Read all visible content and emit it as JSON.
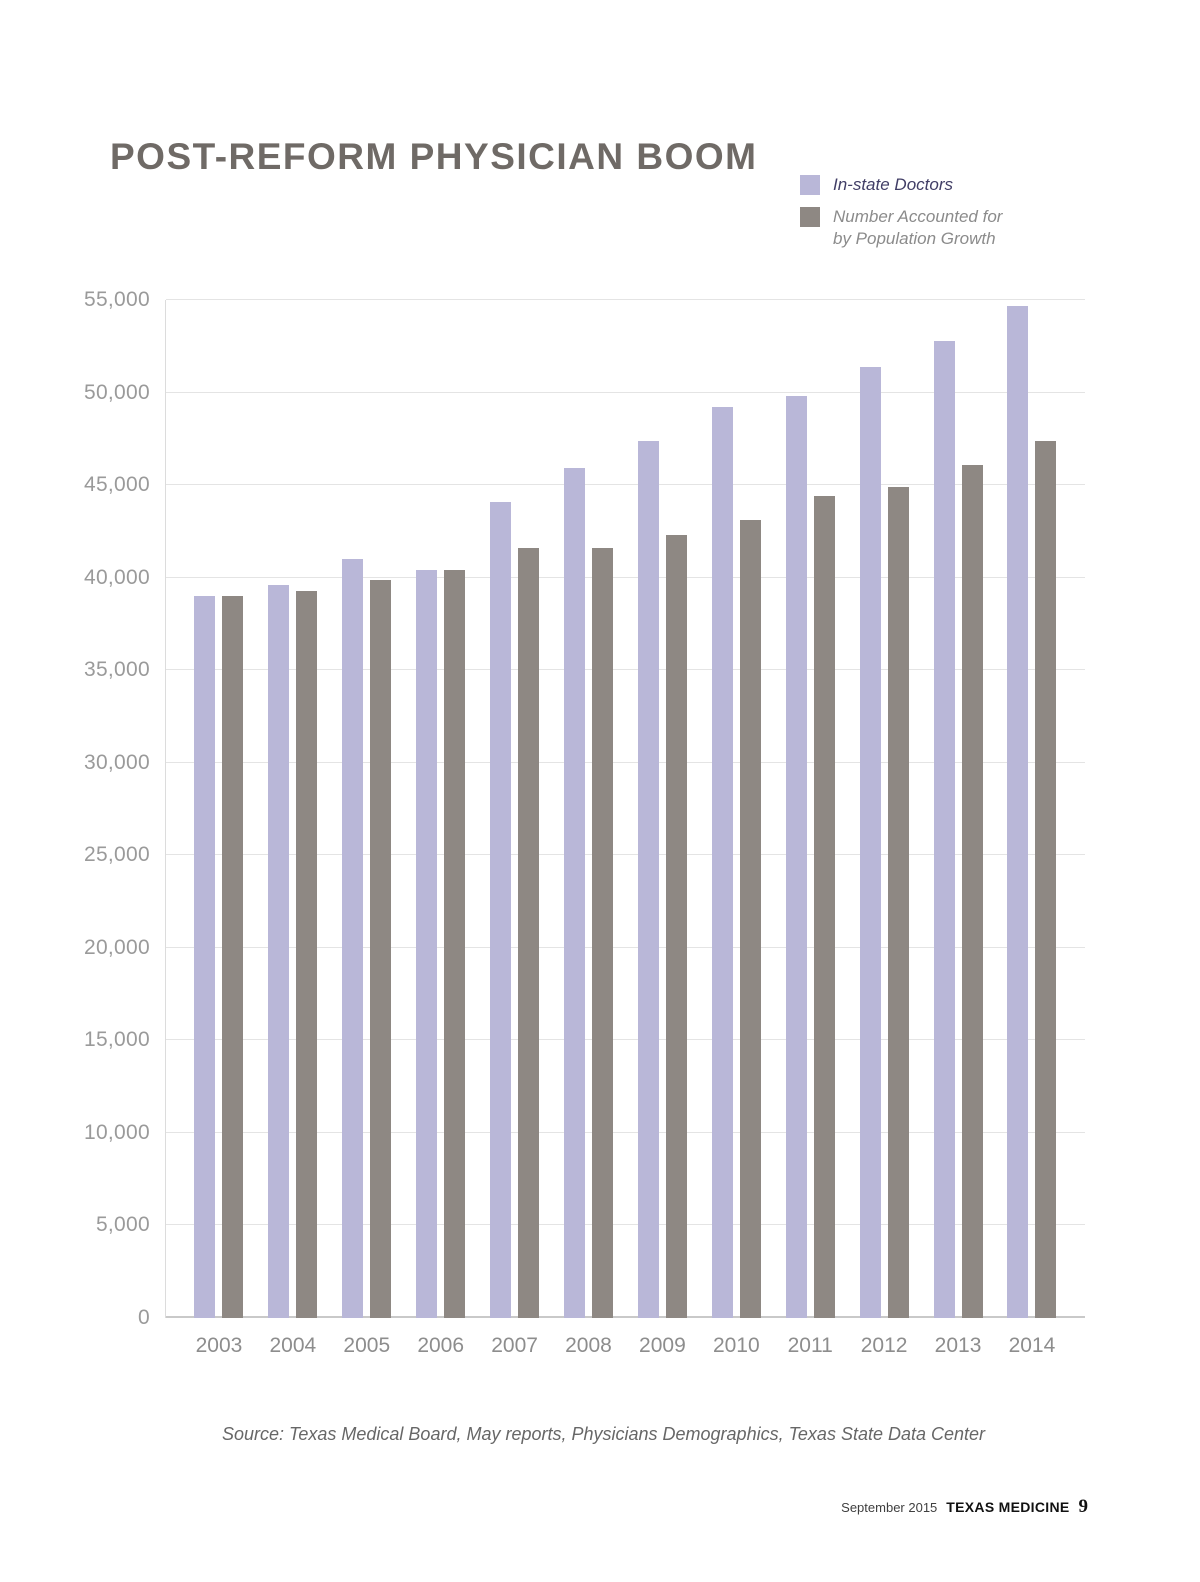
{
  "title": "POST-REFORM PHYSICIAN BOOM",
  "legend": [
    {
      "label": "In-state Doctors",
      "color": "#b9b7d8",
      "text_color": "#413e66"
    },
    {
      "label": "Number Accounted for\nby Population Growth",
      "color": "#8e8883",
      "text_color": "#8b8b8b"
    }
  ],
  "chart_data": {
    "type": "bar",
    "title": "POST-REFORM PHYSICIAN BOOM",
    "categories": [
      "2003",
      "2004",
      "2005",
      "2006",
      "2007",
      "2008",
      "2009",
      "2010",
      "2011",
      "2012",
      "2013",
      "2014"
    ],
    "series": [
      {
        "name": "In-state Doctors",
        "color": "#b9b7d8",
        "values": [
          39000,
          39600,
          41000,
          40400,
          44100,
          45900,
          47400,
          49200,
          49800,
          51400,
          52800,
          54700
        ]
      },
      {
        "name": "Number Accounted for by Population Growth",
        "color": "#8e8883",
        "values": [
          39000,
          39300,
          39900,
          40400,
          41600,
          41600,
          42300,
          43100,
          44400,
          44900,
          46100,
          47400
        ]
      }
    ],
    "xlabel": "",
    "ylabel": "",
    "ylim": [
      0,
      55000
    ],
    "ytick_step": 5000,
    "yticks": [
      0,
      5000,
      10000,
      15000,
      20000,
      25000,
      30000,
      35000,
      40000,
      45000,
      50000,
      55000
    ],
    "grid": true,
    "legend_position": "top-right"
  },
  "source": "Source: Texas Medical Board, May reports, Physicians Demographics, Texas State Data Center",
  "footer": {
    "date": "September 2015",
    "publication": "TEXAS MEDICINE",
    "page_number": "9"
  }
}
